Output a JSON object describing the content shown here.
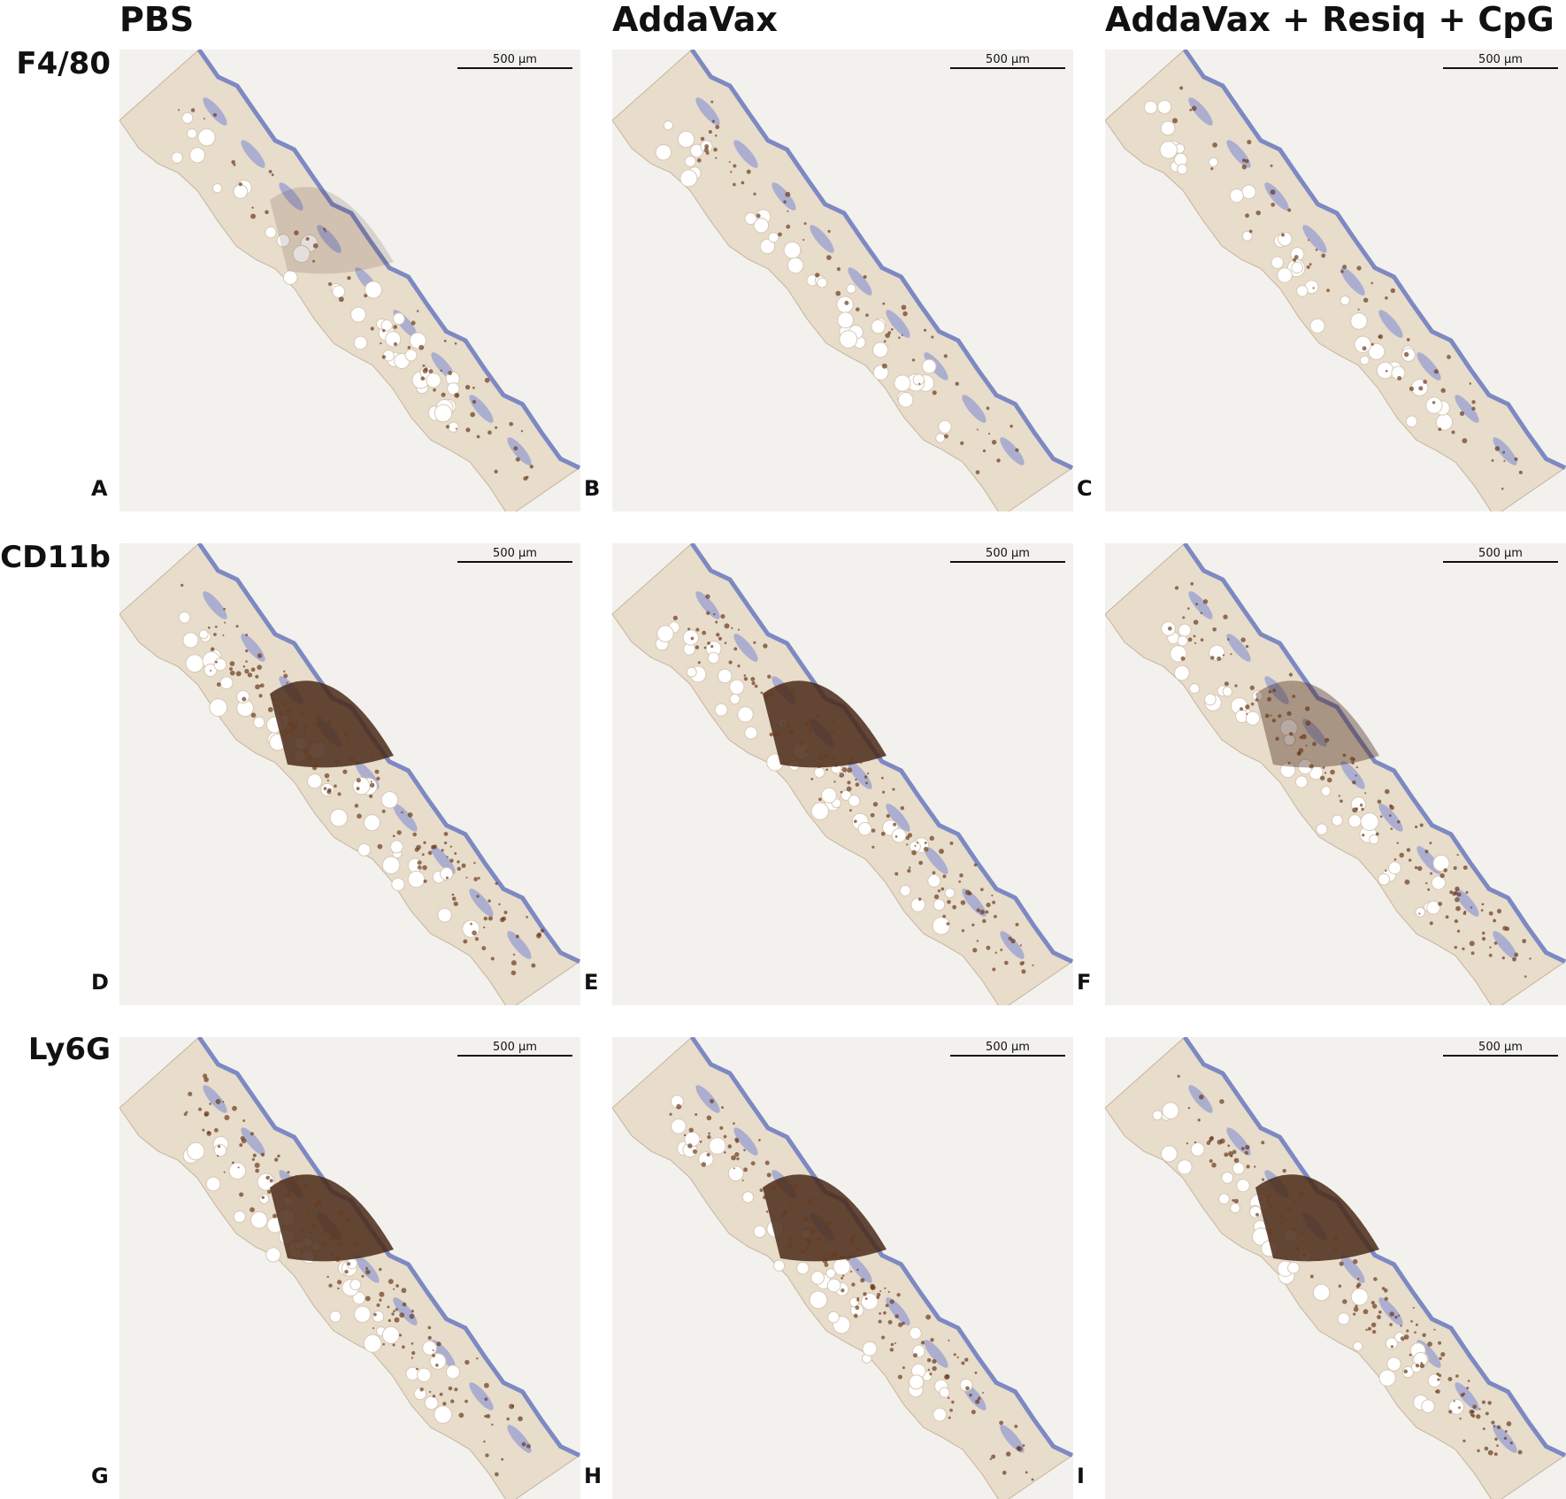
{
  "columns": [
    "PBS",
    "AddaVax",
    "AddaVax + Resiq + CpG"
  ],
  "rows": [
    "F4/80",
    "CD11b",
    "Ly6G"
  ],
  "panels": [
    {
      "letter": "A",
      "scale_bar": "500 µm"
    },
    {
      "letter": "B",
      "scale_bar": "500 µm"
    },
    {
      "letter": "C",
      "scale_bar": "500 µm"
    },
    {
      "letter": "D",
      "scale_bar": "500 µm"
    },
    {
      "letter": "E",
      "scale_bar": "500 µm"
    },
    {
      "letter": "F",
      "scale_bar": "500 µm"
    },
    {
      "letter": "G",
      "scale_bar": "500 µm"
    },
    {
      "letter": "H",
      "scale_bar": "500 µm"
    },
    {
      "letter": "I",
      "scale_bar": "500 µm"
    }
  ]
}
